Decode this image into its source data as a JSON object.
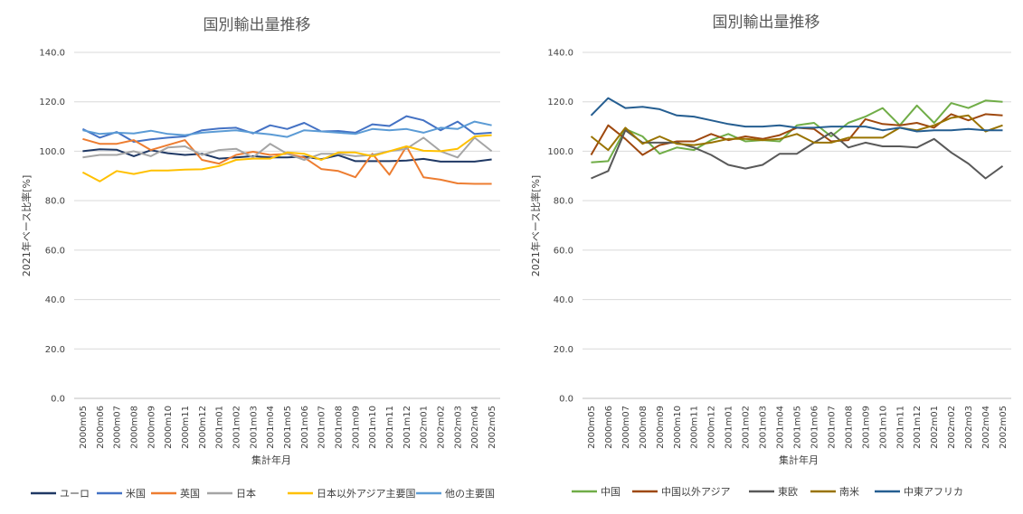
{
  "chart_data": [
    {
      "type": "line",
      "title": "国別輸出量推移",
      "xlabel": "集計年月",
      "ylabel": "2021年ベース比率[%]",
      "ylim": [
        0,
        140
      ],
      "yticks": [
        "0.0",
        "20.0",
        "40.0",
        "60.0",
        "80.0",
        "100.0",
        "120.0",
        "140.0"
      ],
      "grid": true,
      "legend_position": "bottom",
      "categories": [
        "2000m05",
        "2000m06",
        "2000m07",
        "2000m08",
        "2000m09",
        "2000m10",
        "2000m11",
        "2000m12",
        "2001m01",
        "2001m02",
        "2001m03",
        "2001m04",
        "2001m05",
        "2001m06",
        "2001m07",
        "2001m08",
        "2001m09",
        "2001m10",
        "2001m11",
        "2001m12",
        "2002m01",
        "2002m02",
        "2002m03",
        "2002m04",
        "2002m05"
      ],
      "series": [
        {
          "name": "ユーロ",
          "color": "#1f3864",
          "values": [
            100.0,
            100.8,
            100.6,
            98.0,
            100.4,
            99.2,
            98.5,
            99.0,
            97.0,
            97.5,
            98.0,
            97.5,
            97.5,
            97.8,
            96.8,
            98.4,
            96.0,
            96.0,
            96.0,
            96.2,
            96.9,
            95.8,
            95.8,
            95.8,
            96.7
          ]
        },
        {
          "name": "米国",
          "color": "#4472c4",
          "values": [
            109.0,
            105.5,
            107.8,
            103.8,
            104.8,
            105.5,
            106.0,
            108.5,
            109.2,
            109.5,
            107.2,
            110.5,
            109.0,
            111.5,
            108.0,
            108.2,
            107.5,
            110.9,
            110.2,
            114.2,
            112.5,
            108.5,
            112.0,
            107.0,
            107.5
          ]
        },
        {
          "name": "英国",
          "color": "#ed7d31",
          "values": [
            105.0,
            103.0,
            103.0,
            104.5,
            100.5,
            102.5,
            104.5,
            96.5,
            95.0,
            98.5,
            99.8,
            98.5,
            99.0,
            97.5,
            92.8,
            92.0,
            89.5,
            99.0,
            90.5,
            102.0,
            89.5,
            88.5,
            87.0,
            86.8,
            86.8
          ]
        },
        {
          "name": "日本",
          "color": "#a5a5a5",
          "values": [
            97.5,
            98.5,
            98.5,
            100.0,
            98.0,
            101.5,
            102.0,
            98.5,
            100.5,
            101.0,
            97.5,
            103.0,
            99.0,
            96.5,
            99.0,
            99.0,
            98.0,
            98.5,
            100.0,
            101.0,
            105.5,
            100.0,
            97.5,
            105.5,
            100.0
          ]
        },
        {
          "name": "日本以外アジア主要国",
          "color": "#ffc000",
          "values": [
            91.5,
            87.8,
            92.0,
            90.8,
            92.2,
            92.2,
            92.6,
            92.7,
            94.0,
            96.5,
            97.0,
            97.0,
            99.5,
            99.0,
            96.5,
            99.5,
            99.5,
            98.0,
            100.0,
            102.0,
            100.2,
            100.0,
            101.0,
            106.0,
            106.5
          ]
        },
        {
          "name": "他の主要国",
          "color": "#5b9bd5",
          "values": [
            108.5,
            107.0,
            107.5,
            107.2,
            108.3,
            107.0,
            106.5,
            107.5,
            108.0,
            108.5,
            107.5,
            106.8,
            105.8,
            108.5,
            108.0,
            107.5,
            107.0,
            109.0,
            108.5,
            109.0,
            107.5,
            109.5,
            109.0,
            112.0,
            110.5
          ]
        }
      ]
    },
    {
      "type": "line",
      "title": "国別輸出量推移",
      "xlabel": "集計年月",
      "ylabel": "2021年ベース比率[%]",
      "ylim": [
        0,
        140
      ],
      "yticks": [
        "0.0",
        "20.0",
        "40.0",
        "60.0",
        "80.0",
        "100.0",
        "120.0",
        "140.0"
      ],
      "grid": true,
      "legend_position": "bottom",
      "categories": [
        "2000m05",
        "2000m06",
        "2000m07",
        "2000m08",
        "2000m09",
        "2000m10",
        "2000m11",
        "2000m12",
        "2001m01",
        "2001m02",
        "2001m03",
        "2001m04",
        "2001m05",
        "2001m06",
        "2001m07",
        "2001m08",
        "2001m09",
        "2001m10",
        "2001m11",
        "2001m12",
        "2002m01",
        "2002m02",
        "2002m03",
        "2002m04",
        "2002m05"
      ],
      "series": [
        {
          "name": "中国",
          "color": "#70ad47",
          "values": [
            95.5,
            96.0,
            109.0,
            106.0,
            99.0,
            101.5,
            100.5,
            104.5,
            107.0,
            104.0,
            104.5,
            104.0,
            110.5,
            111.5,
            106.0,
            111.5,
            114.0,
            117.5,
            110.5,
            118.5,
            111.5,
            119.5,
            117.5,
            120.5,
            120.0
          ]
        },
        {
          "name": "中国以外アジア",
          "color": "#9e480e",
          "values": [
            98.5,
            110.5,
            105.0,
            98.5,
            102.5,
            104.0,
            104.0,
            107.0,
            104.5,
            106.0,
            105.0,
            106.5,
            109.5,
            109.0,
            104.0,
            104.5,
            113.0,
            111.0,
            110.5,
            111.5,
            109.5,
            115.0,
            112.5,
            115.0,
            114.5
          ]
        },
        {
          "name": "東欧",
          "color": "#595959",
          "values": [
            89.0,
            92.0,
            108.5,
            103.5,
            103.5,
            103.5,
            101.5,
            98.5,
            94.5,
            93.0,
            94.5,
            99.0,
            99.0,
            103.5,
            107.5,
            101.5,
            103.5,
            102.0,
            102.0,
            101.5,
            105.0,
            99.5,
            95.0,
            89.0,
            94.0
          ]
        },
        {
          "name": "南米",
          "color": "#997300",
          "values": [
            106.0,
            100.5,
            109.5,
            103.0,
            106.0,
            103.0,
            102.5,
            103.5,
            105.0,
            105.0,
            104.5,
            105.0,
            107.0,
            103.5,
            103.5,
            105.5,
            105.5,
            105.5,
            109.5,
            108.5,
            110.5,
            113.5,
            114.5,
            108.0,
            110.5
          ]
        },
        {
          "name": "中東アフリカ",
          "color": "#255e91",
          "values": [
            114.5,
            121.5,
            117.5,
            118.0,
            117.0,
            114.5,
            114.0,
            112.5,
            111.0,
            110.0,
            110.0,
            110.5,
            109.5,
            109.5,
            110.0,
            110.0,
            110.0,
            108.5,
            109.5,
            108.0,
            108.5,
            108.5,
            109.0,
            108.5,
            108.5
          ]
        }
      ]
    }
  ]
}
